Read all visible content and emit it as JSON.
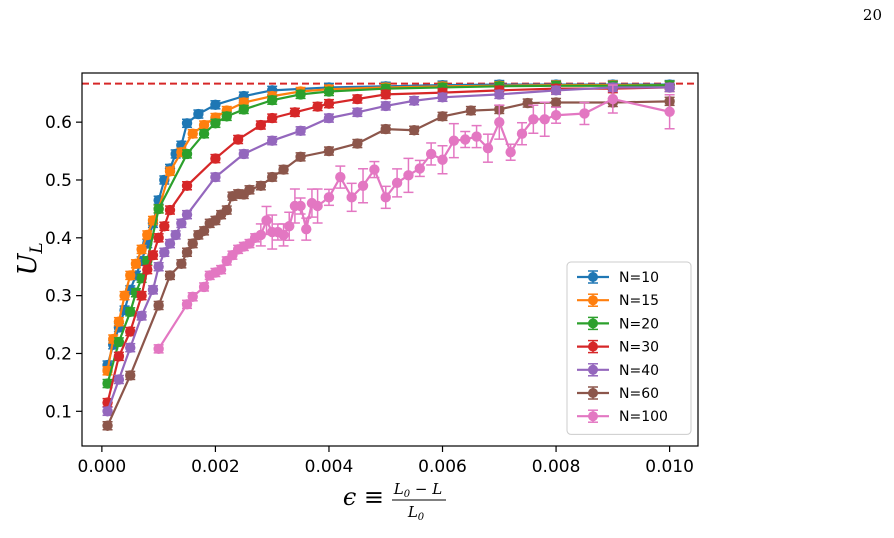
{
  "page": {
    "number": "20"
  },
  "chart_data": {
    "type": "line",
    "xlabel": {
      "lhs": "ϵ ≡",
      "numerator": "L0 − L",
      "denominator": "L0"
    },
    "ylabel": "UL",
    "xlim": [
      -0.00035,
      0.0105
    ],
    "ylim": [
      0.04,
      0.685
    ],
    "xticks": [
      "0.000",
      "0.002",
      "0.004",
      "0.006",
      "0.008",
      "0.010"
    ],
    "yticks": [
      "0.1",
      "0.2",
      "0.3",
      "0.4",
      "0.5",
      "0.6"
    ],
    "reference_line": {
      "y": 0.6667,
      "style": "dashed",
      "color": "#d62728"
    },
    "legend": {
      "position": "lower-right"
    },
    "series": [
      {
        "name": "N=10",
        "color": "#1f77b4",
        "x": [
          0.0001,
          0.0002,
          0.0003,
          0.0004,
          0.0005,
          0.0006,
          0.0007,
          0.0008,
          0.0009,
          0.001,
          0.0011,
          0.0012,
          0.0013,
          0.0014,
          0.0015,
          0.0017,
          0.002,
          0.0025,
          0.003,
          0.004,
          0.005,
          0.006,
          0.007,
          0.008,
          0.009,
          0.01
        ],
        "y": [
          0.18,
          0.215,
          0.245,
          0.275,
          0.31,
          0.335,
          0.36,
          0.39,
          0.425,
          0.465,
          0.5,
          0.52,
          0.545,
          0.56,
          0.598,
          0.614,
          0.63,
          0.645,
          0.655,
          0.66,
          0.662,
          0.664,
          0.665,
          0.665,
          0.665,
          0.665
        ]
      },
      {
        "name": "N=15",
        "color": "#ff7f0e",
        "x": [
          0.0001,
          0.0002,
          0.0003,
          0.0004,
          0.0005,
          0.0006,
          0.0007,
          0.0008,
          0.0009,
          0.001,
          0.0012,
          0.0014,
          0.0016,
          0.0018,
          0.002,
          0.0022,
          0.0025,
          0.003,
          0.0035,
          0.004,
          0.005,
          0.006,
          0.007,
          0.008,
          0.009,
          0.01
        ],
        "y": [
          0.17,
          0.225,
          0.255,
          0.3,
          0.335,
          0.355,
          0.38,
          0.405,
          0.43,
          0.45,
          0.515,
          0.548,
          0.58,
          0.595,
          0.608,
          0.62,
          0.634,
          0.645,
          0.653,
          0.657,
          0.66,
          0.662,
          0.663,
          0.664,
          0.664,
          0.664
        ]
      },
      {
        "name": "N=20",
        "color": "#2ca02c",
        "x": [
          0.0001,
          0.0003,
          0.0005,
          0.0006,
          0.0007,
          0.0008,
          0.001,
          0.0015,
          0.0018,
          0.002,
          0.0022,
          0.0025,
          0.003,
          0.0035,
          0.004,
          0.005,
          0.006,
          0.007,
          0.008,
          0.009,
          0.01
        ],
        "y": [
          0.148,
          0.22,
          0.272,
          0.305,
          0.33,
          0.36,
          0.45,
          0.545,
          0.58,
          0.598,
          0.61,
          0.622,
          0.638,
          0.648,
          0.653,
          0.658,
          0.66,
          0.662,
          0.663,
          0.663,
          0.664
        ]
      },
      {
        "name": "N=30",
        "color": "#d62728",
        "x": [
          0.0001,
          0.0003,
          0.0005,
          0.0007,
          0.0008,
          0.0009,
          0.001,
          0.0011,
          0.0012,
          0.0015,
          0.002,
          0.0024,
          0.0028,
          0.003,
          0.0034,
          0.0038,
          0.004,
          0.0045,
          0.005,
          0.006,
          0.007,
          0.008,
          0.009,
          0.01
        ],
        "y": [
          0.115,
          0.195,
          0.238,
          0.3,
          0.345,
          0.37,
          0.4,
          0.42,
          0.448,
          0.49,
          0.537,
          0.57,
          0.595,
          0.607,
          0.617,
          0.627,
          0.632,
          0.64,
          0.648,
          0.651,
          0.655,
          0.658,
          0.658,
          0.66
        ]
      },
      {
        "name": "N=40",
        "color": "#9467bd",
        "x": [
          0.0001,
          0.0003,
          0.0005,
          0.0007,
          0.0009,
          0.001,
          0.0011,
          0.0012,
          0.0013,
          0.0014,
          0.0015,
          0.002,
          0.0025,
          0.003,
          0.0035,
          0.004,
          0.0045,
          0.005,
          0.0055,
          0.006,
          0.007,
          0.008,
          0.009,
          0.01
        ],
        "y": [
          0.1,
          0.155,
          0.21,
          0.265,
          0.31,
          0.35,
          0.375,
          0.39,
          0.405,
          0.425,
          0.44,
          0.505,
          0.545,
          0.568,
          0.585,
          0.607,
          0.617,
          0.628,
          0.637,
          0.643,
          0.648,
          0.655,
          0.66,
          0.66
        ]
      },
      {
        "name": "N=60",
        "color": "#8c564b",
        "x": [
          0.0001,
          0.0005,
          0.001,
          0.0012,
          0.0014,
          0.0015,
          0.0016,
          0.0017,
          0.0018,
          0.0019,
          0.002,
          0.0021,
          0.0022,
          0.0023,
          0.0024,
          0.0025,
          0.0026,
          0.0028,
          0.003,
          0.0032,
          0.0035,
          0.004,
          0.0045,
          0.005,
          0.0055,
          0.006,
          0.0065,
          0.007,
          0.0075,
          0.008,
          0.009,
          0.01
        ],
        "y": [
          0.075,
          0.162,
          0.283,
          0.335,
          0.355,
          0.375,
          0.39,
          0.405,
          0.412,
          0.425,
          0.43,
          0.44,
          0.448,
          0.472,
          0.476,
          0.475,
          0.483,
          0.49,
          0.505,
          0.518,
          0.54,
          0.55,
          0.563,
          0.588,
          0.586,
          0.61,
          0.62,
          0.622,
          0.633,
          0.634,
          0.634,
          0.636
        ]
      },
      {
        "name": "N=100",
        "color": "#e377c2",
        "x": [
          0.001,
          0.0015,
          0.0016,
          0.0018,
          0.0019,
          0.002,
          0.0021,
          0.0022,
          0.0023,
          0.0024,
          0.0025,
          0.0026,
          0.0027,
          0.0028,
          0.0029,
          0.003,
          0.0031,
          0.0032,
          0.0033,
          0.0034,
          0.0035,
          0.0036,
          0.0037,
          0.0038,
          0.004,
          0.0042,
          0.0044,
          0.0046,
          0.0048,
          0.005,
          0.0052,
          0.0054,
          0.0056,
          0.0058,
          0.006,
          0.0062,
          0.0064,
          0.0066,
          0.0068,
          0.007,
          0.0072,
          0.0074,
          0.0076,
          0.0078,
          0.008,
          0.0085,
          0.009,
          0.01
        ],
        "y": [
          0.208,
          0.285,
          0.298,
          0.315,
          0.335,
          0.34,
          0.345,
          0.36,
          0.37,
          0.38,
          0.385,
          0.39,
          0.4,
          0.405,
          0.43,
          0.41,
          0.41,
          0.405,
          0.42,
          0.455,
          0.455,
          0.415,
          0.46,
          0.455,
          0.47,
          0.505,
          0.47,
          0.49,
          0.518,
          0.47,
          0.495,
          0.508,
          0.52,
          0.545,
          0.535,
          0.568,
          0.57,
          0.575,
          0.555,
          0.6,
          0.548,
          0.58,
          0.605,
          0.605,
          0.612,
          0.615,
          0.64,
          0.618
        ]
      }
    ]
  }
}
